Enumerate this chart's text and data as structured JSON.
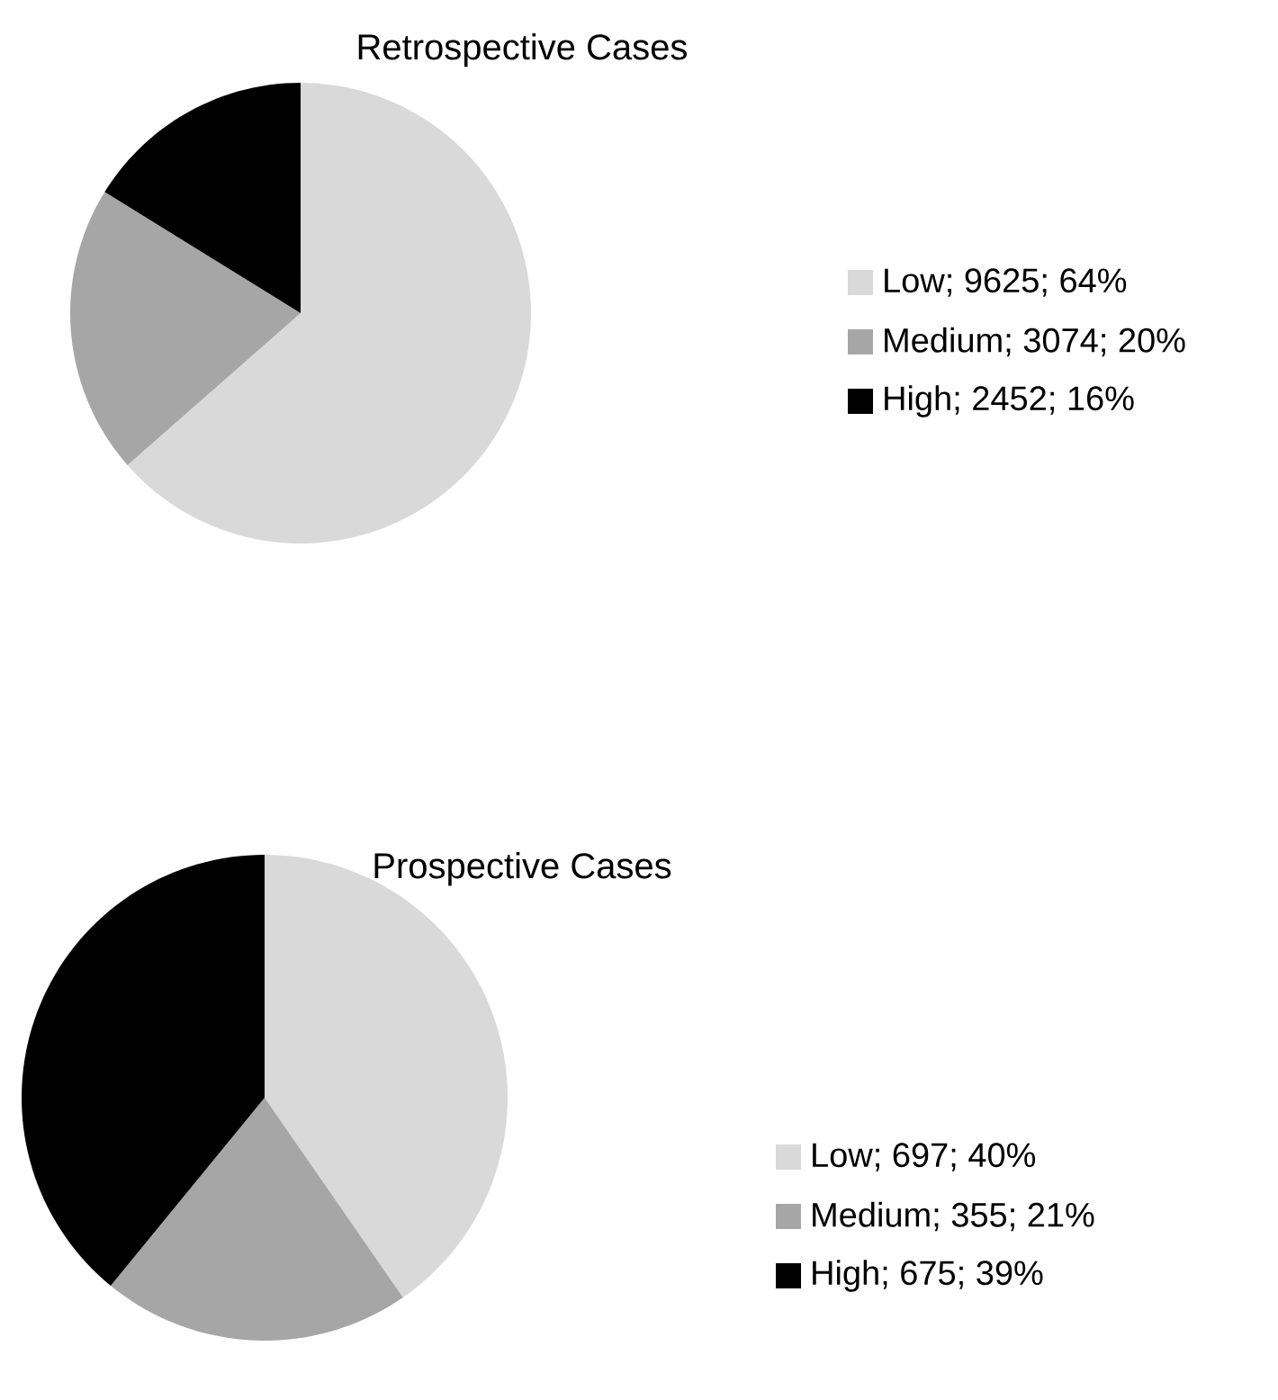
{
  "chart_data": [
    {
      "type": "pie",
      "title": "Retrospective Cases",
      "categories": [
        "Low; 9625; 64%",
        "Medium; 3074; 20%",
        "High; 2452; 16%"
      ],
      "values": [
        9625,
        3074,
        2452
      ],
      "colors": [
        "#d9d9d9",
        "#a6a6a6",
        "#000000"
      ],
      "legend": "right"
    },
    {
      "type": "pie",
      "title": "Prospective Cases",
      "categories": [
        "Low; 697; 40%",
        "Medium; 355; 21%",
        "High; 675; 39%"
      ],
      "values": [
        697,
        355,
        675
      ],
      "colors": [
        "#d9d9d9",
        "#a6a6a6",
        "#000000"
      ],
      "legend": "right"
    }
  ]
}
